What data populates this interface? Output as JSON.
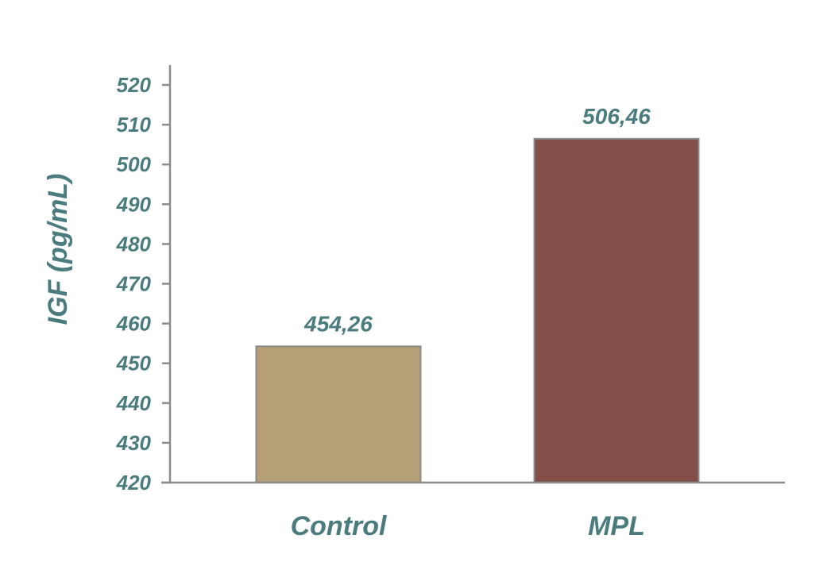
{
  "chart_data": {
    "type": "bar",
    "categories": [
      "Control",
      "MPL"
    ],
    "values": [
      454.26,
      506.46
    ],
    "value_labels": [
      "454,26",
      "506,46"
    ],
    "bar_colors": [
      "#b59f76",
      "#814f47"
    ],
    "title": "",
    "xlabel": "",
    "ylabel": "IGF (pg/mL)",
    "ylim": [
      420,
      520
    ],
    "yticks": [
      420,
      430,
      440,
      450,
      460,
      470,
      480,
      490,
      500,
      510,
      520
    ],
    "grid": false,
    "legend": "none"
  },
  "colors": {
    "text": "#4a7b7d",
    "axis": "#8c8c8c",
    "bar_border": "#8a8a8a"
  }
}
